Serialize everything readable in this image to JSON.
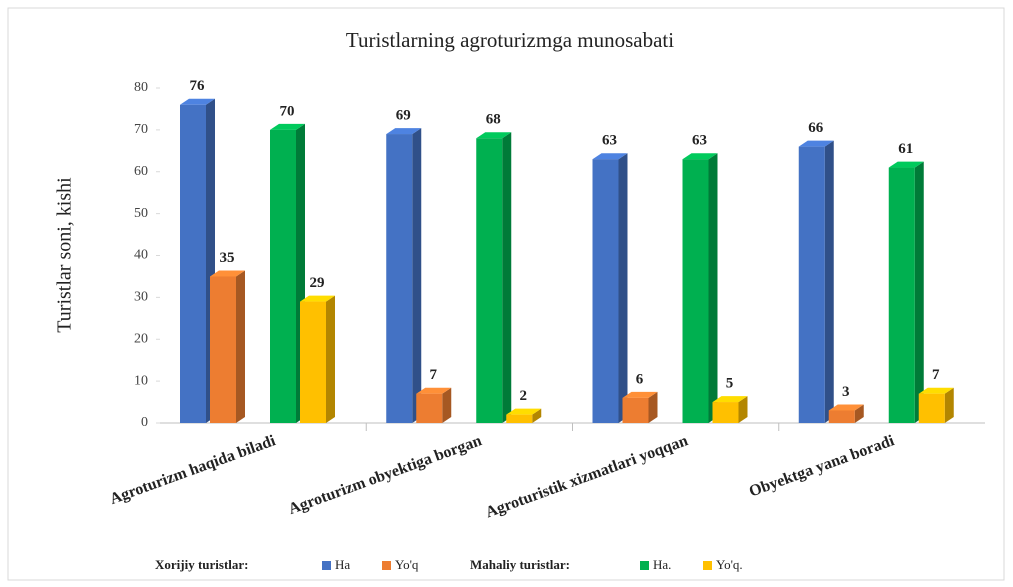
{
  "chart_data": {
    "type": "bar3d",
    "title": "Turistlarning agroturizmga munosabati",
    "y_label": "Turistlar soni, kishi",
    "categories": [
      "Agroturizm haqida biladi",
      "Agroturizm obyektiga borgan",
      "Agroturistik xizmatlari yoqqan",
      "Obyektga yana boradi"
    ],
    "legend_groups": [
      "Xorijiy turistlar:",
      "Mahaliy turistlar:"
    ],
    "series": [
      {
        "name": "Ha",
        "color": "#4472c4",
        "values": [
          76,
          69,
          63,
          66
        ]
      },
      {
        "name": "Yo'q",
        "color": "#ed7d31",
        "values": [
          35,
          7,
          6,
          3
        ]
      },
      {
        "name": "Ha.",
        "color": "#00b050",
        "values": [
          70,
          68,
          63,
          61
        ]
      },
      {
        "name": "Yo'q.",
        "color": "#ffc000",
        "values": [
          29,
          2,
          5,
          7
        ]
      }
    ],
    "ylim": [
      0,
      80
    ],
    "yticks": [
      0,
      10,
      20,
      30,
      40,
      50,
      60,
      70,
      80
    ],
    "grid": false
  }
}
